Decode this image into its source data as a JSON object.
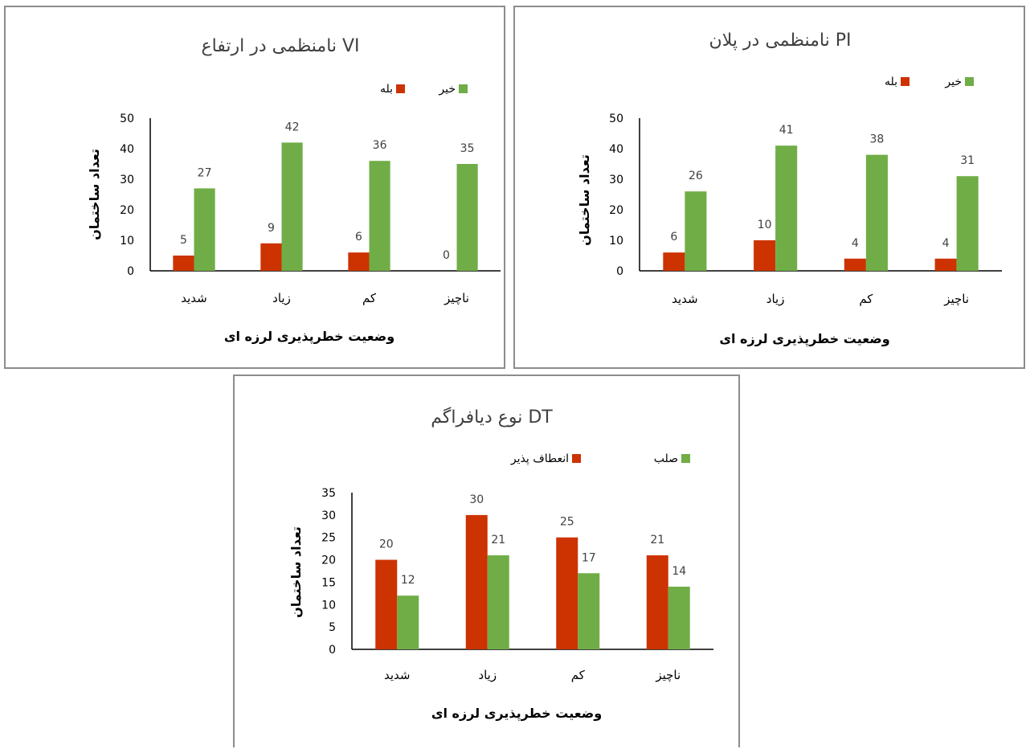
{
  "colors": {
    "red": "#cc3300",
    "green": "#70ad47",
    "axis": "#000000"
  },
  "chart_data": [
    {
      "type": "bar",
      "title": "نامنظمی در ارتفاع VI",
      "categories": [
        "شدید",
        "زیاد",
        "کم",
        "ناچیز"
      ],
      "series": [
        {
          "name": "بله",
          "color": "#cc3300",
          "values": [
            5,
            9,
            6,
            0
          ]
        },
        {
          "name": "خیر",
          "color": "#70ad47",
          "values": [
            27,
            42,
            36,
            35
          ]
        }
      ],
      "ylim": [
        0,
        50
      ],
      "yticks": [
        "0",
        "10",
        "20",
        "30",
        "40",
        "50"
      ],
      "xlabel": "وضعیت خطرپذیری لرزه ای",
      "ylabel": "تعداد ساختمان",
      "legend": "top"
    },
    {
      "type": "bar",
      "title": "نامنظمی در پلان PI",
      "categories": [
        "شدید",
        "زیاد",
        "کم",
        "ناچیز"
      ],
      "series": [
        {
          "name": "بله",
          "color": "#cc3300",
          "values": [
            6,
            10,
            4,
            4
          ]
        },
        {
          "name": "خیر",
          "color": "#70ad47",
          "values": [
            26,
            41,
            38,
            31
          ]
        }
      ],
      "ylim": [
        0,
        50
      ],
      "yticks": [
        "0",
        "10",
        "20",
        "30",
        "40",
        "50"
      ],
      "xlabel": "وضعیت خطرپذیری لرزه ای",
      "ylabel": "تعداد ساختمان",
      "legend": "top-right"
    },
    {
      "type": "bar",
      "title": "نوع دیافراگم DT",
      "categories": [
        "شدید",
        "زیاد",
        "کم",
        "ناچیز"
      ],
      "series": [
        {
          "name": "انعطاف پذیر",
          "color": "#cc3300",
          "values": [
            20,
            30,
            25,
            21
          ]
        },
        {
          "name": "صلب",
          "color": "#70ad47",
          "values": [
            12,
            21,
            17,
            14
          ]
        }
      ],
      "ylim": [
        0,
        35
      ],
      "yticks": [
        "0",
        "5",
        "10",
        "15",
        "20",
        "25",
        "30",
        "35"
      ],
      "xlabel": "وضعیت خطرپذیری لرزه ای",
      "ylabel": "تعداد ساختمان",
      "legend": "top"
    }
  ]
}
